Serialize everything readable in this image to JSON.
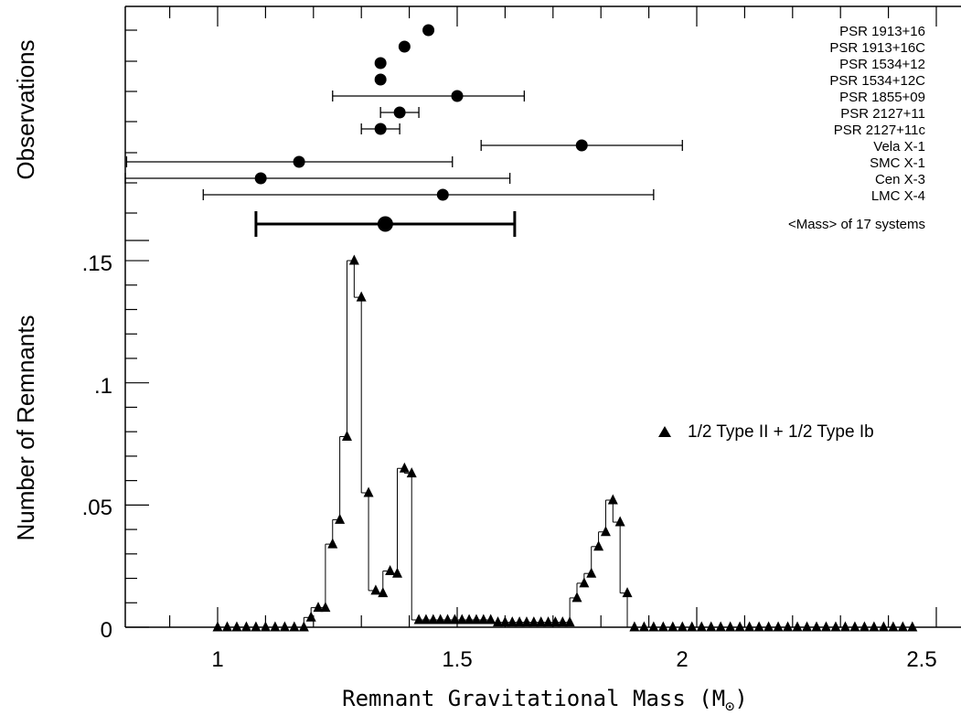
{
  "chart_data": {
    "type": "scatter",
    "xlabel": "Remnant Gravitational Mass (M⊙)",
    "xlabel_parts": {
      "main": "Remnant Gravitational Mass (M",
      "subscript": "⊙",
      "close": ")"
    },
    "ylabel_lower": "Number of Remnants",
    "ylabel_upper": "Observations",
    "xlim": [
      0.8,
      2.65
    ],
    "ylim": [
      0,
      0.15
    ],
    "x_ticks": [
      {
        "value": 1,
        "label": "1"
      },
      {
        "value": 1.5,
        "label": "1.5"
      },
      {
        "value": 2,
        "label": "2"
      },
      {
        "value": 2.5,
        "label": "2.5"
      }
    ],
    "y_ticks": [
      {
        "value": 0,
        "label": "0"
      },
      {
        "value": 0.05,
        "label": ".05"
      },
      {
        "value": 0.1,
        "label": ".1"
      },
      {
        "value": 0.15,
        "label": ".15"
      }
    ],
    "legend_position": "right",
    "series": [
      {
        "name": "1/2 Type II + 1/2 Type Ib",
        "marker": "triangle",
        "color": "#000000",
        "points": [
          [
            1.0,
            0
          ],
          [
            1.02,
            0
          ],
          [
            1.04,
            0
          ],
          [
            1.06,
            0
          ],
          [
            1.08,
            0
          ],
          [
            1.1,
            0
          ],
          [
            1.12,
            0
          ],
          [
            1.14,
            0
          ],
          [
            1.16,
            0
          ],
          [
            1.18,
            0
          ],
          [
            1.195,
            0.004
          ],
          [
            1.21,
            0.008
          ],
          [
            1.225,
            0.008
          ],
          [
            1.24,
            0.034
          ],
          [
            1.255,
            0.044
          ],
          [
            1.27,
            0.078
          ],
          [
            1.285,
            0.15
          ],
          [
            1.3,
            0.135
          ],
          [
            1.315,
            0.055
          ],
          [
            1.33,
            0.015
          ],
          [
            1.345,
            0.014
          ],
          [
            1.36,
            0.023
          ],
          [
            1.375,
            0.022
          ],
          [
            1.39,
            0.065
          ],
          [
            1.405,
            0.063
          ],
          [
            1.42,
            0.003
          ],
          [
            1.435,
            0.003
          ],
          [
            1.45,
            0.003
          ],
          [
            1.465,
            0.003
          ],
          [
            1.48,
            0.003
          ],
          [
            1.495,
            0.003
          ],
          [
            1.51,
            0.003
          ],
          [
            1.525,
            0.003
          ],
          [
            1.54,
            0.003
          ],
          [
            1.555,
            0.003
          ],
          [
            1.57,
            0.003
          ],
          [
            1.585,
            0.002
          ],
          [
            1.6,
            0.002
          ],
          [
            1.615,
            0.002
          ],
          [
            1.63,
            0.002
          ],
          [
            1.645,
            0.002
          ],
          [
            1.66,
            0.002
          ],
          [
            1.675,
            0.002
          ],
          [
            1.69,
            0.002
          ],
          [
            1.705,
            0.002
          ],
          [
            1.72,
            0.002
          ],
          [
            1.735,
            0.002
          ],
          [
            1.75,
            0.012
          ],
          [
            1.765,
            0.018
          ],
          [
            1.78,
            0.022
          ],
          [
            1.795,
            0.033
          ],
          [
            1.81,
            0.039
          ],
          [
            1.825,
            0.052
          ],
          [
            1.84,
            0.043
          ],
          [
            1.855,
            0.014
          ],
          [
            1.87,
            0
          ],
          [
            1.89,
            0
          ],
          [
            1.91,
            0
          ],
          [
            1.93,
            0
          ],
          [
            1.95,
            0
          ],
          [
            1.97,
            0
          ],
          [
            1.99,
            0
          ],
          [
            2.01,
            0
          ],
          [
            2.03,
            0
          ],
          [
            2.05,
            0
          ],
          [
            2.07,
            0
          ],
          [
            2.09,
            0
          ],
          [
            2.11,
            0
          ],
          [
            2.13,
            0
          ],
          [
            2.15,
            0
          ],
          [
            2.17,
            0
          ],
          [
            2.19,
            0
          ],
          [
            2.21,
            0
          ],
          [
            2.23,
            0
          ],
          [
            2.25,
            0
          ],
          [
            2.27,
            0
          ],
          [
            2.29,
            0
          ],
          [
            2.31,
            0
          ],
          [
            2.33,
            0
          ],
          [
            2.35,
            0
          ],
          [
            2.37,
            0
          ],
          [
            2.39,
            0
          ],
          [
            2.41,
            0
          ],
          [
            2.43,
            0
          ],
          [
            2.45,
            0
          ]
        ]
      }
    ],
    "observations": [
      {
        "label": "PSR 1913+16",
        "mass": 1.44
      },
      {
        "label": "PSR 1913+16C",
        "mass": 1.39
      },
      {
        "label": "PSR 1534+12",
        "mass": 1.34
      },
      {
        "label": "PSR 1534+12C",
        "mass": 1.34
      },
      {
        "label": "PSR 1855+09",
        "mass": 1.5,
        "err_low": 1.24,
        "err_high": 1.64
      },
      {
        "label": "PSR 2127+11",
        "mass": 1.38,
        "err_low": 1.34,
        "err_high": 1.42
      },
      {
        "label": "PSR 2127+11c",
        "mass": 1.34,
        "err_low": 1.3,
        "err_high": 1.38
      },
      {
        "label": "Vela X-1",
        "mass": 1.76,
        "err_low": 1.55,
        "err_high": 1.97
      },
      {
        "label": "SMC X-1",
        "mass": 1.17,
        "err_low": 0.81,
        "err_high": 1.49
      },
      {
        "label": "Cen X-3",
        "mass": 1.09,
        "err_low": 0.8,
        "err_high": 1.61
      },
      {
        "label": "LMC X-4",
        "mass": 1.47,
        "err_low": 0.97,
        "err_high": 1.91
      }
    ],
    "mean_mass": {
      "label": "<Mass> of 17 systems",
      "mass": 1.35,
      "err_low": 1.08,
      "err_high": 1.62
    }
  }
}
